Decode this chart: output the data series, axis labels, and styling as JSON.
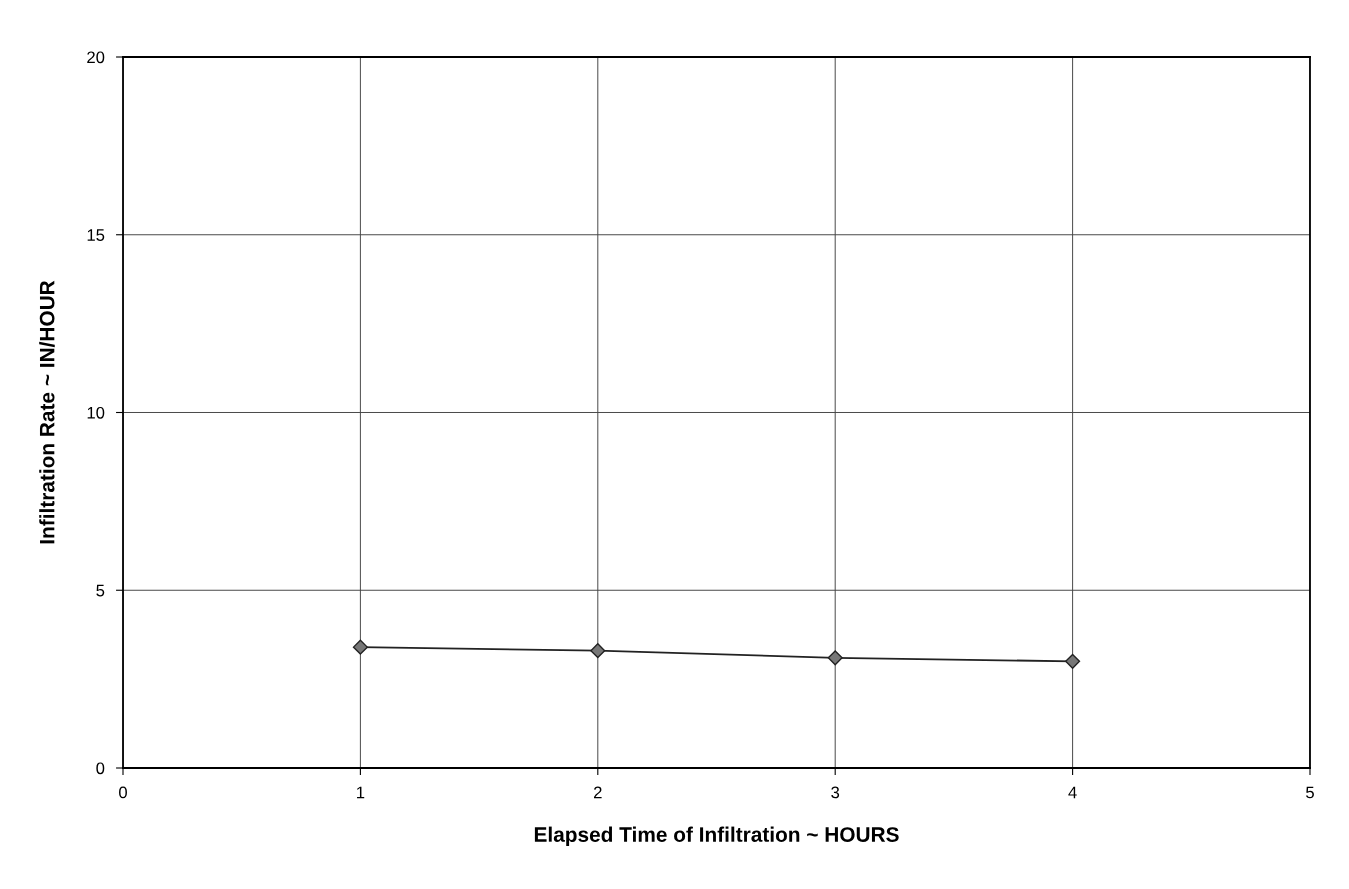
{
  "chart_data": {
    "type": "line",
    "xlabel": "Elapsed Time of Infiltration ~ HOURS",
    "ylabel": "Infiltration Rate ~ IN/HOUR",
    "x": [
      1,
      2,
      3,
      4
    ],
    "series": [
      {
        "color": "#222222",
        "values": [
          3.4,
          3.3,
          3.1,
          3.0
        ]
      }
    ],
    "xlim": [
      0,
      5
    ],
    "xticks": [
      0,
      1,
      2,
      3,
      4,
      5
    ],
    "ylim": [
      0,
      20
    ],
    "yticks": [
      0,
      5,
      10,
      15,
      20
    ],
    "grid": true,
    "marker": "diamond",
    "line_style": "solid"
  }
}
